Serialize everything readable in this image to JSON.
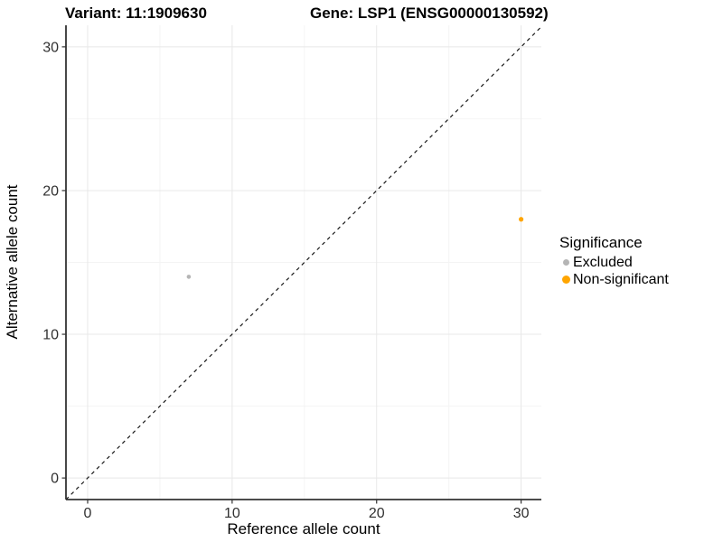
{
  "chart_data": {
    "type": "scatter",
    "title_variant": "Variant: 11:1909630",
    "title_gene": "Gene: LSP1 (ENSG00000130592)",
    "xlabel": "Reference allele count",
    "ylabel": "Alternative allele count",
    "xlim": [
      -1.5,
      31.4
    ],
    "ylim": [
      -1.5,
      31.5
    ],
    "xticks": [
      0,
      10,
      20,
      30
    ],
    "yticks": [
      0,
      10,
      20,
      30
    ],
    "xticks_minor": [
      5,
      15,
      25
    ],
    "yticks_minor": [
      5,
      15,
      25
    ],
    "grid": "major+minor",
    "identity_line": {
      "style": "dashed",
      "from": [
        -1.5,
        -1.5
      ],
      "to": [
        31.4,
        31.4
      ]
    },
    "series": [
      {
        "name": "Excluded",
        "color": "#b5b5b5",
        "point_radius": 2.3,
        "points": [
          [
            7,
            14
          ]
        ]
      },
      {
        "name": "Non-significant",
        "color": "#ffa500",
        "point_radius": 2.6,
        "points": [
          [
            30,
            18
          ]
        ]
      }
    ],
    "legend": {
      "title": "Significance",
      "position": "right",
      "items": [
        {
          "label": "Excluded",
          "color": "#b5b5b5",
          "key_size": 7
        },
        {
          "label": "Non-significant",
          "color": "#ffa500",
          "key_size": 9
        }
      ]
    },
    "colors": {
      "axis_line": "#333333",
      "tick_label": "#303030",
      "grid_major": "#e8e8e8",
      "grid_minor": "#f4f4f4",
      "identity_line": "#1a1a1a"
    }
  }
}
